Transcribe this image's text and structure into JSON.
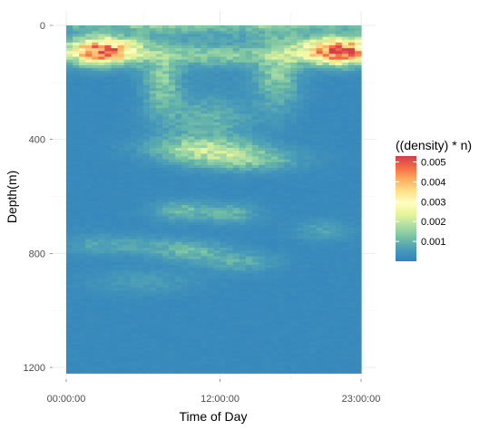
{
  "chart_data": {
    "type": "heatmap",
    "xlabel": "Time of Day",
    "ylabel": "Depth(m)",
    "x_tick_labels": [
      "00:00:00",
      "12:00:00",
      "23:00:00"
    ],
    "x_ticks_hours": [
      0,
      12,
      23
    ],
    "xlim_hours": [
      0,
      23
    ],
    "y_ticks": [
      0,
      400,
      800,
      1200
    ],
    "ylim": [
      1220,
      0
    ],
    "y_reversed": true,
    "grid": "on",
    "legend": {
      "title": "((density) * n)",
      "position": "right",
      "range": [
        0,
        0.0053
      ],
      "breaks": [
        0.001,
        0.002,
        0.003,
        0.004,
        0.005
      ],
      "break_labels": [
        "0.001",
        "0.002",
        "0.003",
        "0.004",
        "0.005"
      ]
    },
    "colors": [
      "#3182bd",
      "#4a9cb8",
      "#74c0a4",
      "#abdda4",
      "#e6f598",
      "#ffffbf",
      "#fee08b",
      "#fdae61",
      "#f46d43",
      "#d53e4f"
    ],
    "background_value": 0.00018,
    "hotspots": [
      {
        "time_hours": 2.8,
        "depth": 90,
        "time_spread": 1.9,
        "depth_spread": 32,
        "value": 0.0049
      },
      {
        "time_hours": 21.2,
        "depth": 90,
        "time_spread": 2.0,
        "depth_spread": 32,
        "value": 0.0051
      },
      {
        "time_hours": 11.5,
        "depth": 105,
        "time_spread": 3.5,
        "depth_spread": 25,
        "value": 0.0011
      },
      {
        "time_hours": 7.5,
        "depth": 200,
        "time_spread": 1.0,
        "depth_spread": 80,
        "value": 0.0011
      },
      {
        "time_hours": 16.5,
        "depth": 170,
        "time_spread": 1.2,
        "depth_spread": 90,
        "value": 0.0011
      },
      {
        "time_hours": 11.0,
        "depth": 330,
        "time_spread": 2.5,
        "depth_spread": 60,
        "value": 0.0008
      },
      {
        "time_hours": 10.5,
        "depth": 430,
        "time_spread": 2.8,
        "depth_spread": 28,
        "value": 0.0013
      },
      {
        "time_hours": 13.5,
        "depth": 470,
        "time_spread": 3.0,
        "depth_spread": 28,
        "value": 0.0013
      },
      {
        "time_hours": 9.0,
        "depth": 650,
        "time_spread": 1.5,
        "depth_spread": 25,
        "value": 0.0009
      },
      {
        "time_hours": 12.8,
        "depth": 660,
        "time_spread": 1.5,
        "depth_spread": 25,
        "value": 0.0008
      },
      {
        "time_hours": 3.5,
        "depth": 770,
        "time_spread": 3.0,
        "depth_spread": 25,
        "value": 0.0006
      },
      {
        "time_hours": 9.5,
        "depth": 790,
        "time_spread": 2.0,
        "depth_spread": 25,
        "value": 0.0009
      },
      {
        "time_hours": 13.5,
        "depth": 830,
        "time_spread": 2.0,
        "depth_spread": 25,
        "value": 0.0007
      },
      {
        "time_hours": 6.0,
        "depth": 900,
        "time_spread": 3.0,
        "depth_spread": 30,
        "value": 0.0004
      },
      {
        "time_hours": 20.0,
        "depth": 720,
        "time_spread": 1.5,
        "depth_spread": 25,
        "value": 0.0005
      }
    ]
  }
}
